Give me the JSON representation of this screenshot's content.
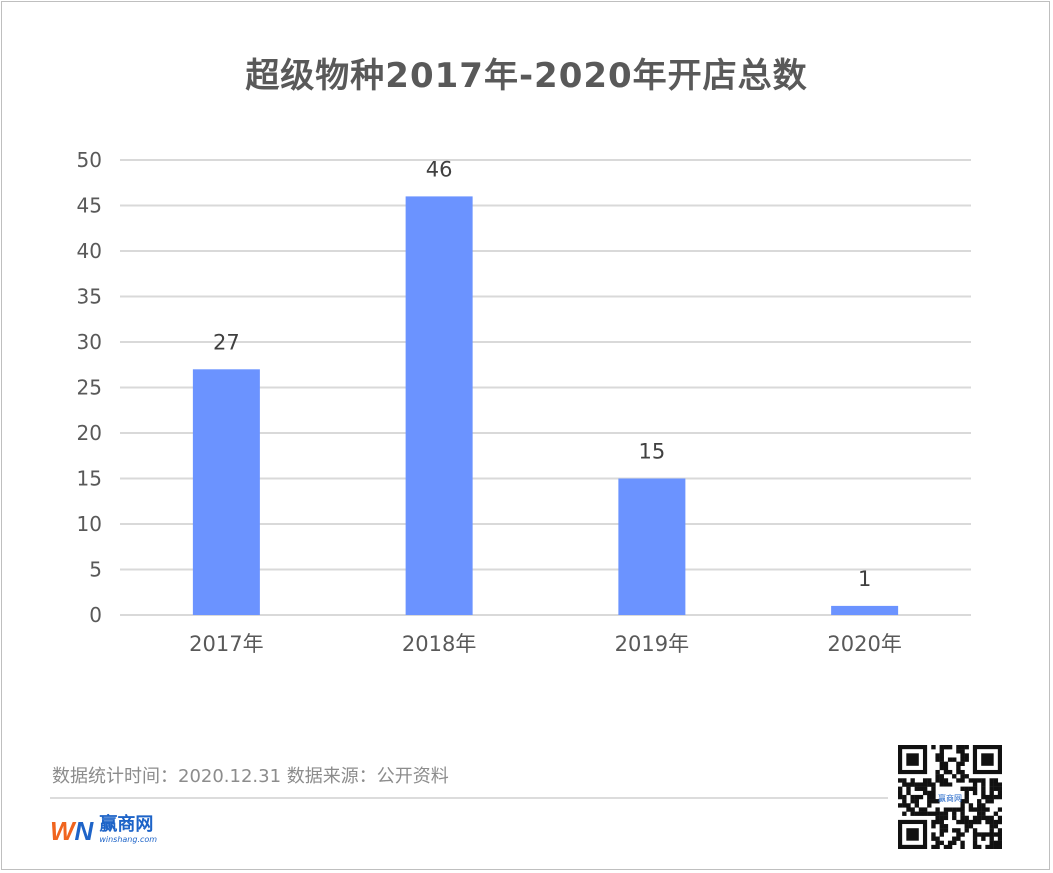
{
  "title": "超级物种2017年-2020年开店总数",
  "chart_data": {
    "type": "bar",
    "title": "超级物种2017年-2020年开店总数",
    "categories": [
      "2017年",
      "2018年",
      "2019年",
      "2020年"
    ],
    "values": [
      27,
      46,
      15,
      1
    ],
    "ylim": [
      0,
      50
    ],
    "yticks": [
      0,
      5,
      10,
      15,
      20,
      25,
      30,
      35,
      40,
      45,
      50
    ],
    "xlabel": "",
    "ylabel": "",
    "grid": true,
    "data_labels": true,
    "bar_color": "#6b93ff",
    "grid_color": "#d9d9d9"
  },
  "footer": {
    "note": "数据统计时间：2020.12.31  数据来源：公开资料"
  },
  "logo": {
    "mark_w": "W",
    "mark_n": "N",
    "name": "赢商网",
    "url": "winshang.com"
  },
  "qr": {
    "icon": "qr-code-icon",
    "center_text": "赢商网"
  }
}
